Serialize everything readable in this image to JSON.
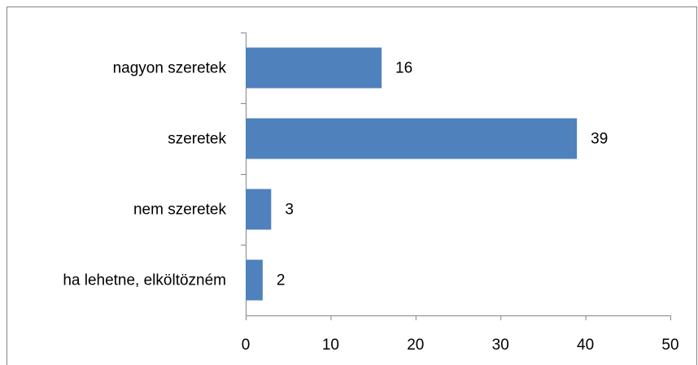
{
  "chart_data": {
    "type": "barh",
    "categories": [
      "nagyon szeretek",
      "szeretek",
      "nem szeretek",
      "ha lehetne, elköltözném"
    ],
    "values": [
      16,
      39,
      3,
      2
    ],
    "color": "#4f81bd",
    "xlim": [
      0,
      50
    ],
    "xticks": [
      0,
      10,
      20,
      30,
      40,
      50
    ],
    "data_labels": true
  }
}
